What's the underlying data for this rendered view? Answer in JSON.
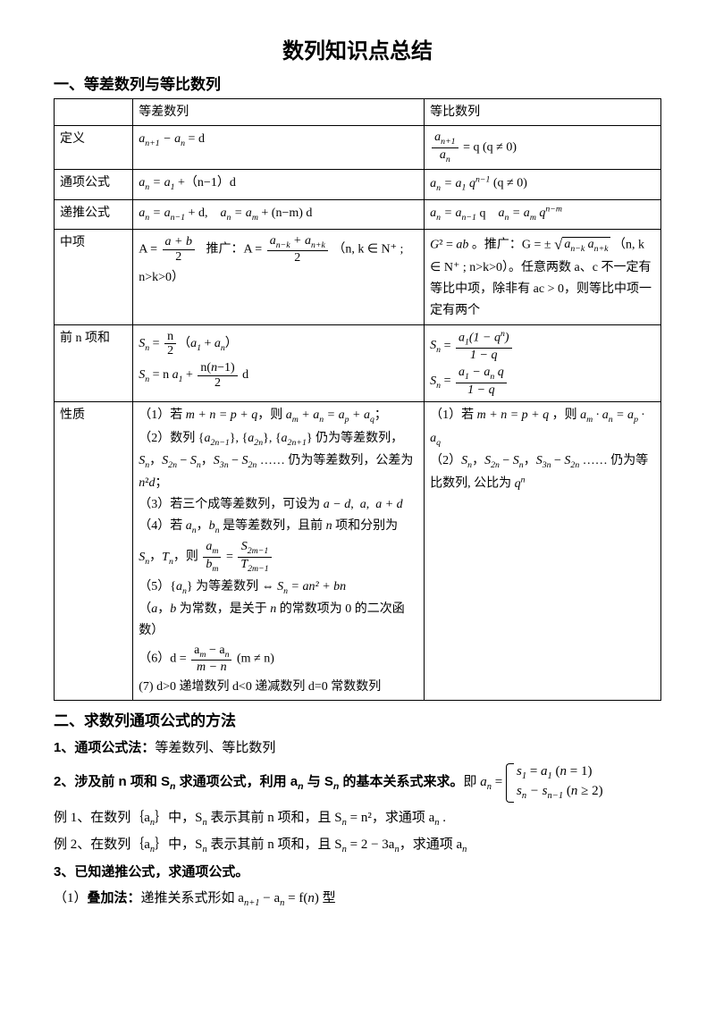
{
  "title": "数列知识点总结",
  "section1": {
    "heading": "一、等差数列与等比数列",
    "headers": {
      "col2": "等差数列",
      "col3": "等比数列"
    },
    "rows": {
      "r1": "定义",
      "r2": "通项公式",
      "r3": "递推公式",
      "r4": "中项",
      "r5": "前 n 项和",
      "r6": "性质"
    },
    "cells": {
      "def_a": "aₙ₊₁ − aₙ = d",
      "def_g_suffix": " = q (q ≠ 0)",
      "gen_a": "aₙ = a₁ + (n−1) d",
      "gen_g": "aₙ = a₁ qⁿ⁻¹  (q ≠ 0)",
      "rec_a": "aₙ = aₙ₋₁ + d,     aₙ = aₘ + (n−m) d",
      "rec_g": "aₙ = aₙ₋₁ q     aₙ = aₘ qⁿ⁻ᵐ",
      "mid_a_suffix": "（n, k ∈ N⁺ ; n>k>0）",
      "mid_g_1": "G² = ab 。推广：G = ±",
      "mid_g_2": "（n, k ∈ N⁺ ; n>k>0）。任意两数 a、c 不一定有等比中项，除非有 ac > 0，则等比中项一定有两个",
      "prop_a_1": "（1）若 m + n = p + q，则 aₘ + aₙ = aₚ + aq ；",
      "prop_a_2": "（2）数列 {a₂ₙ₋₁}, {a₂ₙ}, {a₂ₙ₊₁} 仍为等差数列，Sₙ，S₂ₙ − Sₙ，S₃ₙ − S₂ₙ …… 仍为等差数列，公差为 n²d；",
      "prop_a_3": "（3）若三个成等差数列，可设为 a − d,  a,  a + d",
      "prop_a_4": "（4）若 aₙ，bₙ 是等差数列，且前 n 项和分别为 Sₙ，Tₙ，则 ",
      "prop_a_5": "（5）{aₙ} 为等差数列 ⇔ Sₙ = an² + bn（a，b 为常数，是关于 n 的常数项为 0 的二次函数）",
      "prop_a_6": "（6）d = ",
      "prop_a_6b": " (m ≠ n)",
      "prop_a_7": "(7) d>0 递增数列 d<0 递减数列 d=0 常数数列",
      "prop_g_1": "（1）若 m + n = p + q ，则 aₘ · aₙ = aₚ · aq",
      "prop_g_2": "（2）Sₙ，S₂ₙ − Sₙ，S₃ₙ − S₂ₙ …… 仍为等比数列, 公比为 qⁿ"
    }
  },
  "section2": {
    "heading": "二、求数列通项公式的方法",
    "item1": "1、通项公式法：",
    "item1b": "等差数列、等比数列",
    "item2": "2、涉及前 n 项和 Sₙ 求通项公式，利用 aₙ 与 Sₙ 的基本关系式来求。",
    "item2b": "即 aₙ = ",
    "brace1": "s₁ = a₁ (n = 1)",
    "brace2": "sₙ − sₙ₋₁ (n ≥ 2)",
    "ex1": "例 1、在数列｛aₙ｝中，Sₙ 表示其前 n 项和，且 Sₙ = n²，求通项 aₙ .",
    "ex2": "例 2、在数列｛aₙ｝中，Sₙ 表示其前 n 项和，且 Sₙ = 2 − 3aₙ，求通项 aₙ",
    "item3": "3、已知递推公式，求通项公式。",
    "item3_1a": "（1）",
    "item3_1b": "叠加法：",
    "item3_1c": "递推关系式形如 aₙ₊₁ − aₙ = f(n) 型"
  }
}
